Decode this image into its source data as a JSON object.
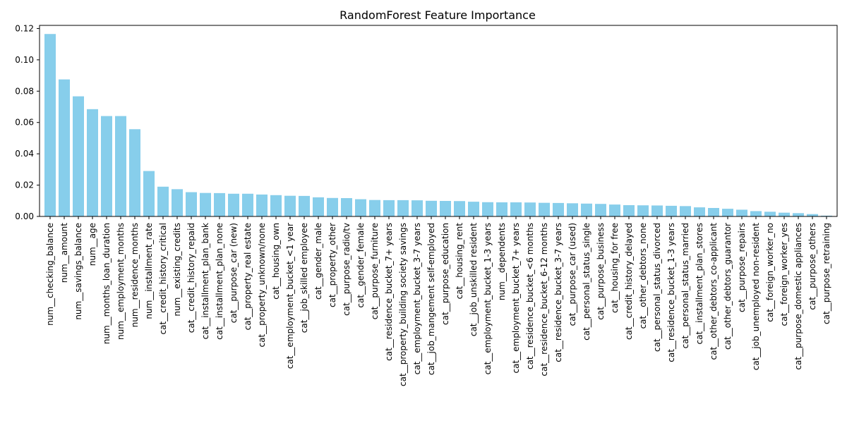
{
  "chart_data": {
    "type": "bar",
    "title": "RandomForest Feature Importance",
    "xlabel": "",
    "ylabel": "",
    "ylim": [
      0,
      0.122
    ],
    "yticks": [
      "0.00",
      "0.02",
      "0.04",
      "0.06",
      "0.08",
      "0.10",
      "0.12"
    ],
    "grid": false,
    "bar_color": "#87ceeb",
    "categories": [
      "num__checking_balance",
      "num__amount",
      "num__savings_balance",
      "num__age",
      "num__months_loan_duration",
      "num__employment_months",
      "num__residence_months",
      "num__installment_rate",
      "cat__credit_history_critical",
      "num__existing_credits",
      "cat__credit_history_repaid",
      "cat__installment_plan_bank",
      "cat__installment_plan_none",
      "cat__purpose_car (new)",
      "cat__property_real estate",
      "cat__property_unknown/none",
      "cat__housing_own",
      "cat__employment_bucket_<1 year",
      "cat__job_skilled employee",
      "cat__gender_male",
      "cat__property_other",
      "cat__purpose_radio/tv",
      "cat__gender_female",
      "cat__purpose_furniture",
      "cat__residence_bucket_7+ years",
      "cat__property_building society savings",
      "cat__employment_bucket_3-7 years",
      "cat__job_mangement self-employed",
      "cat__purpose_education",
      "cat__housing_rent",
      "cat__job_unskilled resident",
      "cat__employment_bucket_1-3 years",
      "num__dependents",
      "cat__employment_bucket_7+ years",
      "cat__residence_bucket_<6 months",
      "cat__residence_bucket_6-12 months",
      "cat__residence_bucket_3-7 years",
      "cat__purpose_car (used)",
      "cat__personal_status_single",
      "cat__purpose_business",
      "cat__housing_for free",
      "cat__credit_history_delayed",
      "cat__other_debtors_none",
      "cat__personal_status_divorced",
      "cat__residence_bucket_1-3 years",
      "cat__personal_status_married",
      "cat__installment_plan_stores",
      "cat__other_debtors_co-applicant",
      "cat__other_debtors_guarantor",
      "cat__purpose_repairs",
      "cat__job_unemployed non-resident",
      "cat__foreign_worker_no",
      "cat__foreign_worker_yes",
      "cat__purpose_domestic appliances",
      "cat__purpose_others",
      "cat__purpose_retraining"
    ],
    "values": [
      0.1165,
      0.0875,
      0.0767,
      0.0685,
      0.0641,
      0.0641,
      0.0557,
      0.029,
      0.019,
      0.0174,
      0.0155,
      0.015,
      0.0149,
      0.0145,
      0.0145,
      0.014,
      0.0136,
      0.0132,
      0.0131,
      0.0122,
      0.0118,
      0.0117,
      0.011,
      0.0105,
      0.0104,
      0.0104,
      0.0103,
      0.01,
      0.0099,
      0.0098,
      0.0094,
      0.0091,
      0.009,
      0.009,
      0.0089,
      0.0087,
      0.0086,
      0.0084,
      0.0082,
      0.008,
      0.0076,
      0.0072,
      0.0071,
      0.007,
      0.0068,
      0.0066,
      0.0058,
      0.0054,
      0.0049,
      0.0043,
      0.0034,
      0.003,
      0.0024,
      0.0021,
      0.0015,
      0.0005
    ]
  }
}
